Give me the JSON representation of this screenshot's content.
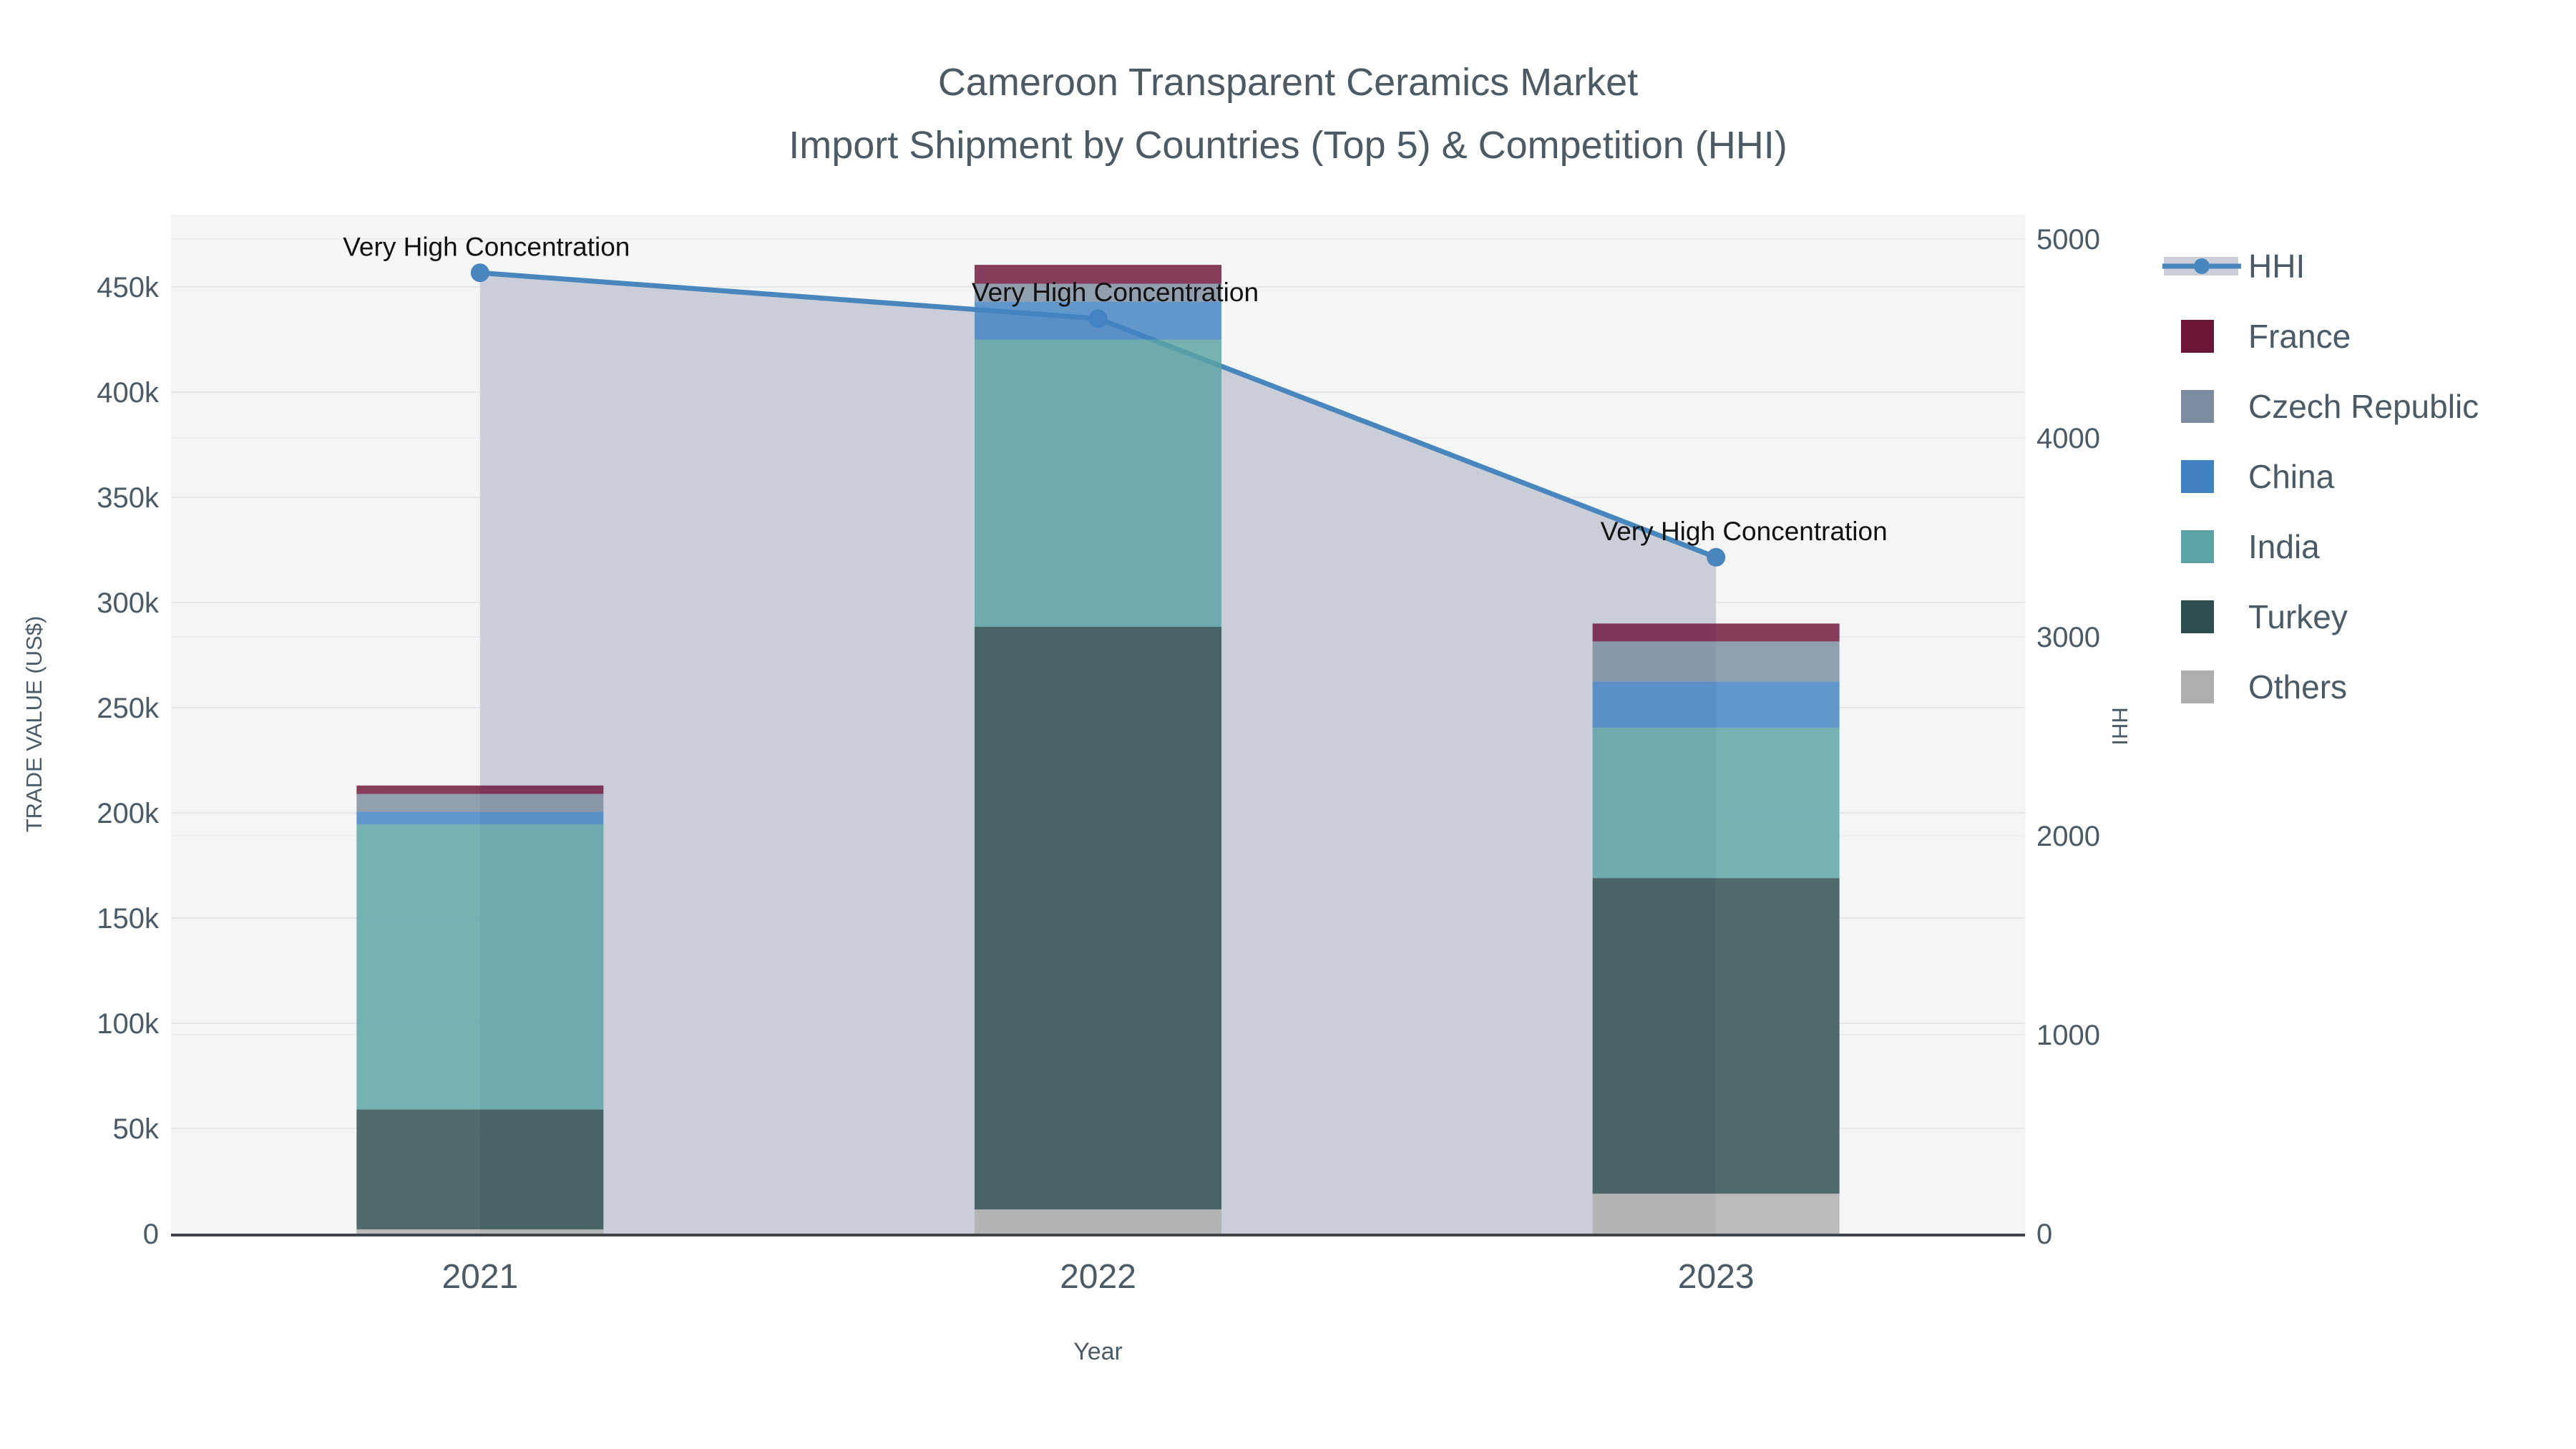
{
  "title": {
    "line1": "Cameroon Transparent Ceramics Market",
    "line2": "Import Shipment by Countries (Top 5) & Competition (HHI)"
  },
  "colors": {
    "hhi_line": "#4a86be",
    "hhi_fill": "#c9ced8",
    "plot_bg": "#f4f5f5",
    "grid_left": "#e4e7e9",
    "grid_right": "#eceeef",
    "axis_line": "#3f4448",
    "text": "#4a5a66",
    "annotation_text": "#111111",
    "France": "#6d1539",
    "Czech Republic": "#7d8ca0",
    "China": "#4282c2",
    "India": "#5ca3a5",
    "Turkey": "#2d4d4e",
    "Others": "#aeaeae"
  },
  "chart_data": {
    "type": "bar",
    "subtype": "stacked-bar-with-line",
    "categories": [
      "2021",
      "2022",
      "2023"
    ],
    "series": [
      {
        "name": "Others",
        "values": [
          2000,
          11500,
          19000
        ]
      },
      {
        "name": "Turkey",
        "values": [
          57000,
          277000,
          150000
        ]
      },
      {
        "name": "India",
        "values": [
          135500,
          136500,
          71500
        ]
      },
      {
        "name": "China",
        "values": [
          6000,
          18000,
          22000
        ]
      },
      {
        "name": "Czech Republic",
        "values": [
          8500,
          8500,
          19000
        ]
      },
      {
        "name": "France",
        "values": [
          4000,
          9000,
          8500
        ]
      }
    ],
    "line_series": {
      "name": "HHI",
      "axis": "right",
      "values": [
        4830,
        4600,
        3400
      ]
    },
    "annotations": [
      {
        "category": "2021",
        "text": "Very High Concentration"
      },
      {
        "category": "2022",
        "text": "Very High Concentration"
      },
      {
        "category": "2023",
        "text": "Very High Concentration"
      }
    ],
    "left_axis": {
      "title": "TRADE VALUE (US$)",
      "ticks": [
        "0",
        "50k",
        "100k",
        "150k",
        "200k",
        "250k",
        "300k",
        "350k",
        "400k",
        "450k"
      ],
      "tick_values": [
        0,
        50000,
        100000,
        150000,
        200000,
        250000,
        300000,
        350000,
        400000,
        450000
      ],
      "range": [
        0,
        484000
      ],
      "grid": true
    },
    "right_axis": {
      "title": "HHI",
      "ticks": [
        "0",
        "1000",
        "2000",
        "3000",
        "4000",
        "5000"
      ],
      "tick_values": [
        0,
        1000,
        2000,
        3000,
        4000,
        5000
      ],
      "range": [
        0,
        5120
      ],
      "grid": true
    },
    "x_axis": {
      "title": "Year"
    },
    "legend_position": "right"
  },
  "legend": {
    "items": [
      {
        "label": "HHI",
        "type": "line"
      },
      {
        "label": "France",
        "type": "swatch"
      },
      {
        "label": "Czech Republic",
        "type": "swatch"
      },
      {
        "label": "China",
        "type": "swatch"
      },
      {
        "label": "India",
        "type": "swatch"
      },
      {
        "label": "Turkey",
        "type": "swatch"
      },
      {
        "label": "Others",
        "type": "swatch"
      }
    ]
  }
}
